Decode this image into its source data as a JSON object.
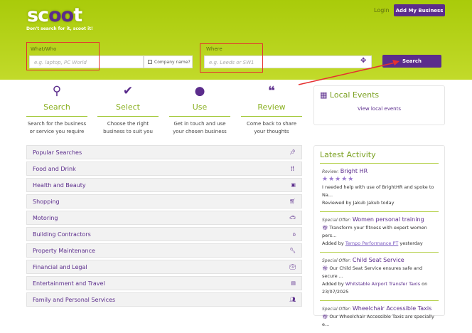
{
  "header": {
    "logo": "scoot",
    "tagline": "Don't search for it, scoot it!",
    "login": "Login",
    "add_business": "Add My Business"
  },
  "search": {
    "what_label": "What/Who",
    "what_placeholder": "e.g. laptop, PC World",
    "company_name": "Company name?",
    "where_label": "Where",
    "where_placeholder": "e.g. Leeds or SW1",
    "button": "Search"
  },
  "steps": [
    {
      "icon": "search-icon",
      "title": "Search",
      "desc": "Search for the business or service you require"
    },
    {
      "icon": "check-icon",
      "title": "Select",
      "desc": "Choose the right business to suit you"
    },
    {
      "icon": "user-icon",
      "title": "Use",
      "desc": "Get in touch and use your chosen business"
    },
    {
      "icon": "comments-icon",
      "title": "Review",
      "desc": "Come back to share your thoughts"
    }
  ],
  "categories": [
    {
      "label": "Popular Searches",
      "icon": "pin-icon"
    },
    {
      "label": "Food and Drink",
      "icon": "cutlery-icon"
    },
    {
      "label": "Health and Beauty",
      "icon": "medkit-icon"
    },
    {
      "label": "Shopping",
      "icon": "cart-icon"
    },
    {
      "label": "Motoring",
      "icon": "car-icon"
    },
    {
      "label": "Building Contractors",
      "icon": "home-icon"
    },
    {
      "label": "Property Maintenance",
      "icon": "wrench-icon"
    },
    {
      "label": "Financial and Legal",
      "icon": "briefcase-icon"
    },
    {
      "label": "Entertainment and Travel",
      "icon": "suitcase-icon"
    },
    {
      "label": "Family and Personal Services",
      "icon": "users-icon"
    }
  ],
  "local_events": {
    "title": "Local Events",
    "link": "View local events"
  },
  "activity": {
    "title": "Latest Activity",
    "items": [
      {
        "type": "Review:",
        "name": "Bright HR",
        "rating": 5,
        "text": "I needed help with use of BrightHR and spoke to Na...",
        "by": "Reviewed by Jakub Jakub today"
      },
      {
        "type": "Special Offer:",
        "name": "Women personal training",
        "text": "Transform your fitness with expert women pers...",
        "by_prefix": "Added by",
        "by_link": "Tempo Performance PT",
        "by_suffix": "yesterday"
      },
      {
        "type": "Special Offer:",
        "name": "Child Seat Service",
        "text": "Our Child Seat Service ensures safe and secure ...",
        "by_prefix": "Added by",
        "by_link": "Whitstable Airport Transfer Taxis",
        "by_suffix": "on 23/07/2025"
      },
      {
        "type": "Special Offer:",
        "name": "Wheelchair Accessible Taxis",
        "text": "Our Wheelchair Accessible Taxis are specially e..."
      }
    ]
  }
}
